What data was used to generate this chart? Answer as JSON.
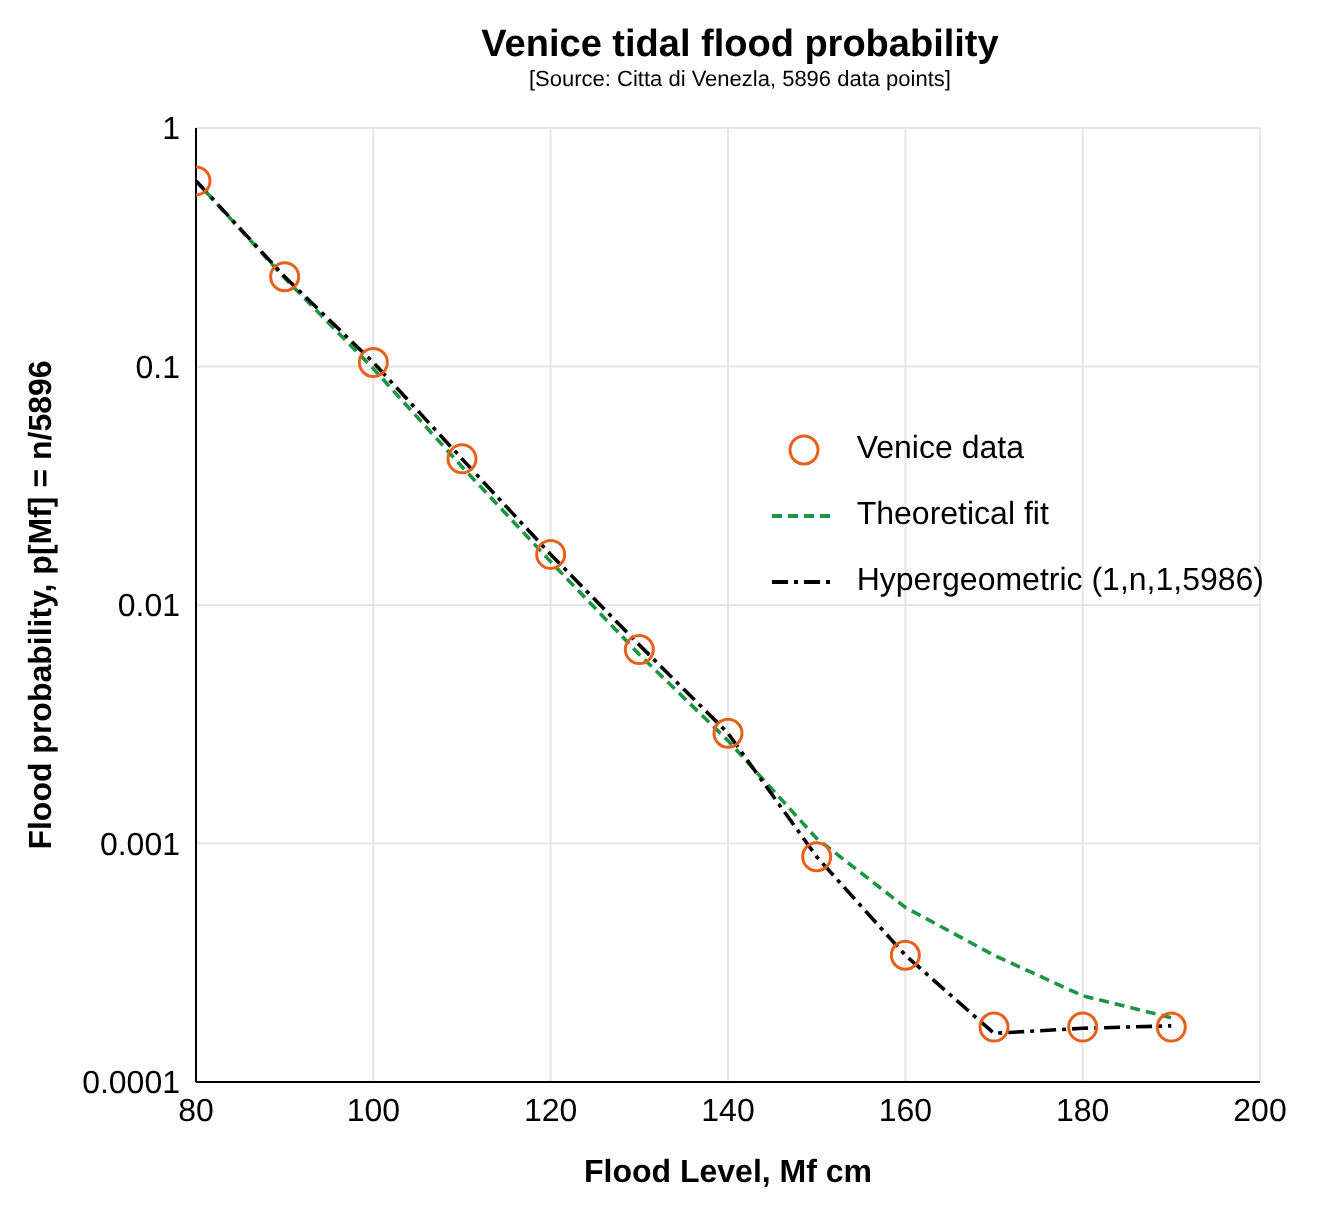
{
  "chart_data": {
    "type": "line",
    "title": "Venice tidal flood probability",
    "subtitle": "[Source: Citta di Venezla, 5896 data points]",
    "xlabel": "Flood Level, Mf cm",
    "ylabel": "Flood probability, p[Mf] = n/5896",
    "log": "y",
    "grid": true,
    "legend": "right",
    "xlim": [
      80,
      200
    ],
    "xticks": [
      80,
      100,
      120,
      140,
      160,
      180,
      200
    ],
    "ylim": [
      0.0001,
      1
    ],
    "yticks": [
      0.0001,
      0.001,
      0.01,
      0.1,
      1
    ],
    "series": [
      {
        "name": "Venice data",
        "type": "scatter",
        "marker": "circle",
        "color": "#e8601c",
        "x": [
          80,
          90,
          100,
          110,
          120,
          130,
          140,
          150,
          160,
          170,
          180,
          190
        ],
        "values": [
          0.6,
          0.238,
          0.104,
          0.041,
          0.0163,
          0.0065,
          0.0029,
          0.00088,
          0.00034,
          0.00017,
          0.00017,
          0.00017
        ]
      },
      {
        "name": "Theoretical fit",
        "line_style": "dashed",
        "marker": "none",
        "color": "#1a9641",
        "x": [
          80,
          90,
          100,
          110,
          120,
          130,
          140,
          150,
          160,
          170,
          180,
          190
        ],
        "values": [
          0.6,
          0.235,
          0.098,
          0.038,
          0.0152,
          0.0062,
          0.0027,
          0.00105,
          0.00054,
          0.00034,
          0.00023,
          0.000186
        ]
      },
      {
        "name": "Hypergeometric (1,n,1,5986)",
        "line_style": "dashdot",
        "marker": "none",
        "color": "#000000",
        "x": [
          80,
          90,
          100,
          110,
          120,
          130,
          140,
          150,
          160,
          170,
          180,
          190
        ],
        "values": [
          0.6,
          0.238,
          0.104,
          0.041,
          0.0163,
          0.0068,
          0.0029,
          0.00088,
          0.00034,
          0.00016,
          0.000168,
          0.000172
        ]
      }
    ]
  }
}
